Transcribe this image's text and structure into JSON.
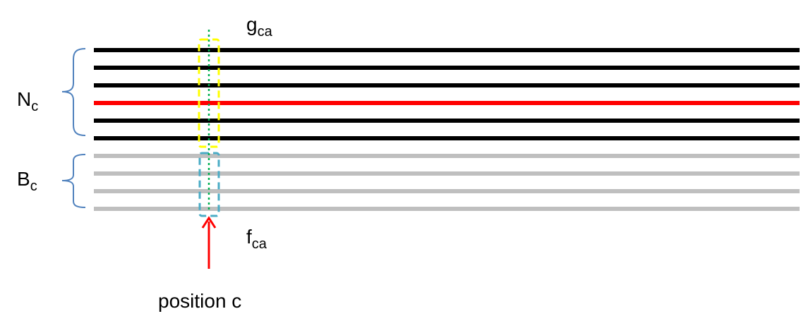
{
  "labels": {
    "n": {
      "main": "N",
      "sub": "c"
    },
    "b": {
      "main": "B",
      "sub": "c"
    },
    "g": {
      "main": "g",
      "sub": "ca"
    },
    "f": {
      "main": "f",
      "sub": "ca"
    },
    "position": "position c"
  },
  "colors": {
    "black_line": "#000000",
    "red_line": "#ff0000",
    "gray_line": "#bfbfbf",
    "brace": "#4f81bd",
    "yellow_box": "#ffff00",
    "cyan_box": "#4bacc6",
    "green_dotted": "#00b050",
    "arrow": "#ff0000"
  },
  "icons": {
    "n_brace": "curly-brace-icon",
    "b_brace": "curly-brace-icon",
    "arrow": "arrow-up-icon"
  }
}
